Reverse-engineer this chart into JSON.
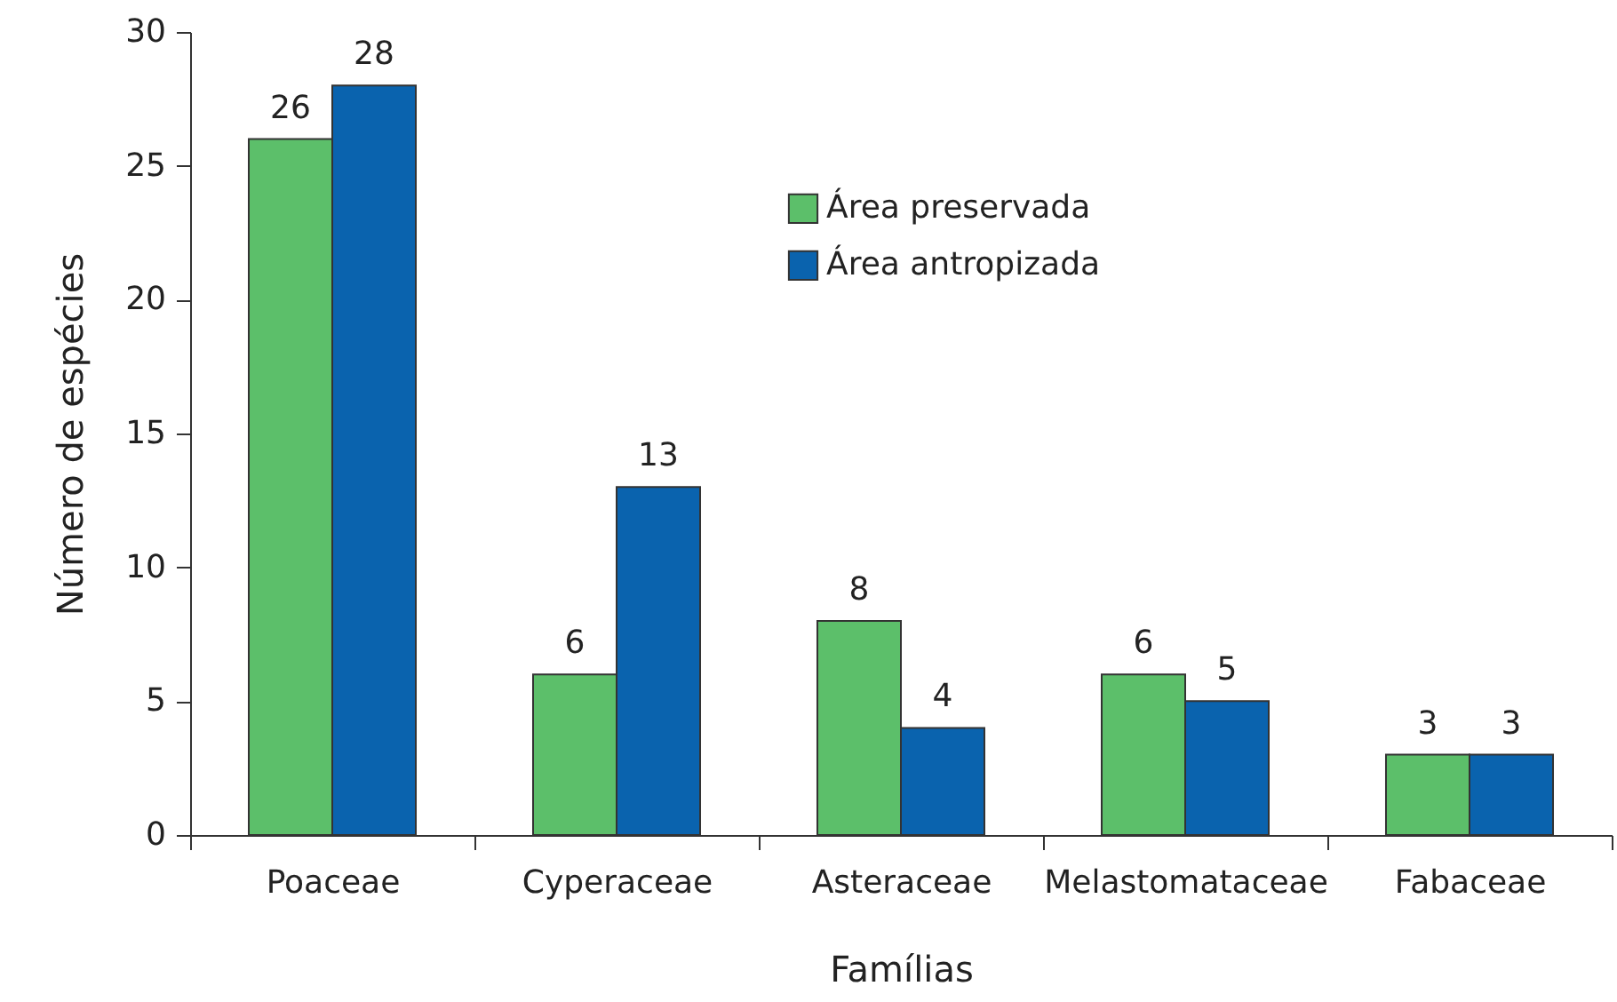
{
  "chart_data": {
    "type": "bar",
    "xlabel": "Famílias",
    "ylabel": "Número de espécies",
    "categories": [
      "Poaceae",
      "Cyperaceae",
      "Asteraceae",
      "Melastomataceae",
      "Fabaceae"
    ],
    "series": [
      {
        "name": "Área preservada",
        "color": "#5cbf6a",
        "values": [
          26,
          6,
          8,
          6,
          3
        ]
      },
      {
        "name": "Área antropizada",
        "color": "#0a63ae",
        "values": [
          28,
          13,
          4,
          5,
          3
        ]
      }
    ],
    "ylim": [
      0,
      30
    ],
    "yticks": [
      0,
      5,
      10,
      15,
      20,
      25,
      30
    ],
    "data_labels": true,
    "grid": false,
    "legend": "top right"
  }
}
